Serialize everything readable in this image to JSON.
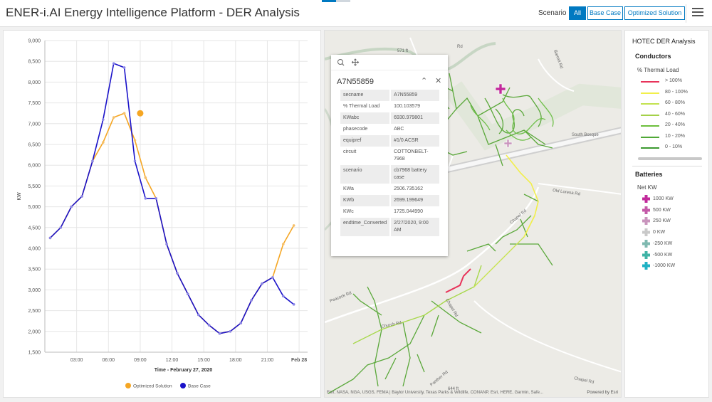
{
  "header": {
    "title": "ENER-i.AI Energy Intelligence Platform - DER Analysis",
    "scenario_label": "Scenario",
    "scenario_buttons": [
      "All",
      "Base Case",
      "Optimized Solution"
    ],
    "selected_scenario": "All"
  },
  "chart_data": {
    "type": "line",
    "xlabel": "Time - February 27, 2020",
    "ylabel": "KW",
    "ylim": [
      1500,
      9000
    ],
    "x_tick_labels": [
      "03:00",
      "06:00",
      "09:00",
      "12:00",
      "15:00",
      "18:00",
      "21:00",
      "Feb 28"
    ],
    "x_tick_hours": [
      3,
      6,
      9,
      12,
      15,
      18,
      21,
      24
    ],
    "y_tick_labels": [
      "1,500",
      "2,000",
      "2,500",
      "3,000",
      "3,500",
      "4,000",
      "4,500",
      "5,000",
      "5,500",
      "6,000",
      "6,500",
      "7,000",
      "7,500",
      "8,000",
      "8,500",
      "9,000"
    ],
    "x_hours": [
      0.5,
      1.5,
      2.5,
      3.5,
      4.5,
      5.5,
      6.5,
      7.5,
      8.5,
      9.5,
      10.5,
      11.5,
      12.5,
      13.5,
      14.5,
      15.5,
      16.5,
      17.5,
      18.5,
      19.5,
      20.5,
      21.5,
      22.5,
      23.5
    ],
    "series": [
      {
        "name": "Optimized Solution",
        "color": "#f5a623",
        "values": [
          4250,
          4500,
          5000,
          5250,
          6100,
          6550,
          7150,
          7250,
          6600,
          5700,
          5200,
          4100,
          3400,
          2900,
          2400,
          2150,
          1950,
          2000,
          2200,
          2750,
          3150,
          3300,
          4100,
          4550
        ]
      },
      {
        "name": "Base Case",
        "color": "#1a12c9",
        "values": [
          4250,
          4500,
          5000,
          5250,
          6100,
          7100,
          8450,
          8350,
          6100,
          5200,
          5200,
          4100,
          3400,
          2900,
          2400,
          2150,
          1950,
          2000,
          2200,
          2750,
          3150,
          3300,
          2850,
          2650
        ]
      }
    ],
    "highlight": {
      "series": "Optimized Solution",
      "x_hour": 9.0,
      "value": 7250
    },
    "legend": [
      "Optimized Solution",
      "Base Case"
    ],
    "legend_position": "bottom",
    "grid": true
  },
  "map": {
    "attribution": "Esri, NASA, NGA, USGS, FEMA | Baylor University, Texas Parks & Wildlife, CONANP, Esri, HERE, Garmin, Safe...",
    "powered_by": "Powered by Esri",
    "road_labels": [
      "South Bosque",
      "Old Lorena Rd",
      "Chapel Rd",
      "Chapel Rd",
      "Peacock Rd",
      "Church Rd",
      "Panther Rd",
      "Barrett Rd",
      "Rd",
      "Chapel Rd",
      "571 ft",
      "644 ft"
    ],
    "popup": {
      "title": "A7N55859",
      "fields": [
        {
          "key": "secname",
          "value": "A7N55859"
        },
        {
          "key": "% Thermal Load",
          "value": "100.103579"
        },
        {
          "key": "KWabc",
          "value": "6930.979801"
        },
        {
          "key": "phasecode",
          "value": "ABC"
        },
        {
          "key": "equipref",
          "value": "#1/0 ACSR"
        },
        {
          "key": "circuit",
          "value": "COTTONBELT-7968"
        },
        {
          "key": "scenario",
          "value": "cb7968 battery case"
        },
        {
          "key": "KWa",
          "value": "2506.735162"
        },
        {
          "key": "KWb",
          "value": "2699.199649"
        },
        {
          "key": "KWc",
          "value": "1725.044990"
        },
        {
          "key": "endtime_Converted",
          "value": "2/27/2020, 9:00 AM"
        }
      ]
    }
  },
  "legend": {
    "title": "HOTEC DER Analysis",
    "conductors_heading": "Conductors",
    "thermal_heading": "% Thermal Load",
    "thermal_classes": [
      {
        "label": "> 100%",
        "color": "#e8335a"
      },
      {
        "label": "80 - 100%",
        "color": "#f2ef4a"
      },
      {
        "label": "60 - 80%",
        "color": "#c3e24f"
      },
      {
        "label": "40 - 60%",
        "color": "#a4d148"
      },
      {
        "label": "20 - 40%",
        "color": "#6cbf3c"
      },
      {
        "label": "10 - 20%",
        "color": "#4fa836"
      },
      {
        "label": "0 - 10%",
        "color": "#3c9a30"
      }
    ],
    "batteries_heading": "Batteries",
    "netkw_heading": "Net KW",
    "battery_classes": [
      {
        "label": "1000 KW",
        "color": "#c2299b"
      },
      {
        "label": "500 KW",
        "color": "#c45aa8"
      },
      {
        "label": "250 KW",
        "color": "#c995bd"
      },
      {
        "label": "0 KW",
        "color": "#c9c9c9"
      },
      {
        "label": "-250 KW",
        "color": "#7fb9b0"
      },
      {
        "label": "-500 KW",
        "color": "#3fb3a6"
      },
      {
        "label": "-1000 KW",
        "color": "#1fb2c4"
      }
    ]
  }
}
